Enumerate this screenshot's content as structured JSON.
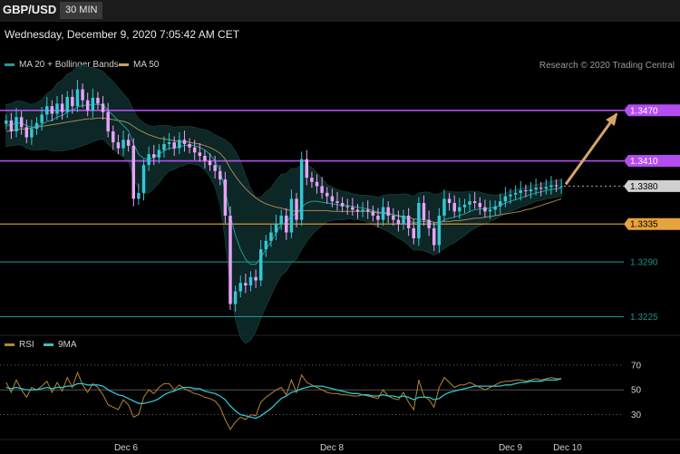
{
  "header": {
    "symbol": "GBP/USD",
    "timeframe": "30 MIN",
    "datetime": "Wednesday, December 9, 2020 7:05:42 AM CET",
    "credit": "Research © 2020 Trading Central"
  },
  "colors": {
    "background": "#000000",
    "resistance": "#b44cf2",
    "pivot": "#e8a33d",
    "support": "#1f8f86",
    "candle_up": "#35c6d4",
    "candle_down": "#e7a3f6",
    "ma20": "#1f9b98",
    "ma50": "#c9a25f",
    "band_fill": "#0e2a2a",
    "arrow": "#d6a46a",
    "rsi": "#b8862f",
    "rsi_ma": "#2fc3cf"
  },
  "chart_data": [
    {
      "type": "candlestick",
      "title": "GBP/USD",
      "timeframe": "30 MIN",
      "legend": [
        "MA 20 + Bollinger Bands",
        "MA 50"
      ],
      "x_ticks": [
        "Dec 6",
        "Dec 8",
        "Dec 9",
        "Dec 10"
      ],
      "ylim": [
        1.3205,
        1.3515
      ],
      "price_levels": [
        {
          "value": 1.347,
          "label": "1.3470",
          "kind": "resistance"
        },
        {
          "value": 1.341,
          "label": "1.3410",
          "kind": "resistance"
        },
        {
          "value": 1.338,
          "label": "1.3380",
          "kind": "last"
        },
        {
          "value": 1.3335,
          "label": "1.3335",
          "kind": "pivot"
        },
        {
          "value": 1.329,
          "label": "1.3290",
          "kind": "support"
        },
        {
          "value": 1.3225,
          "label": "1.3225",
          "kind": "support"
        }
      ],
      "close": [
        1.3458,
        1.3445,
        1.3462,
        1.345,
        1.3438,
        1.3448,
        1.3455,
        1.3465,
        1.3475,
        1.3466,
        1.3478,
        1.3468,
        1.3486,
        1.3475,
        1.3495,
        1.3482,
        1.347,
        1.3485,
        1.3478,
        1.3468,
        1.3445,
        1.3432,
        1.3425,
        1.3435,
        1.3428,
        1.3365,
        1.3372,
        1.3405,
        1.3418,
        1.3414,
        1.3423,
        1.343,
        1.3432,
        1.3425,
        1.3435,
        1.343,
        1.3426,
        1.342,
        1.3416,
        1.341,
        1.3405,
        1.3398,
        1.3388,
        1.3345,
        1.324,
        1.3255,
        1.3265,
        1.3262,
        1.3272,
        1.3268,
        1.3305,
        1.3315,
        1.3325,
        1.3335,
        1.3345,
        1.3325,
        1.3365,
        1.334,
        1.3412,
        1.339,
        1.3385,
        1.338,
        1.3372,
        1.3368,
        1.3362,
        1.336,
        1.3356,
        1.3355,
        1.3352,
        1.335,
        1.3352,
        1.335,
        1.3345,
        1.334,
        1.3355,
        1.3345,
        1.334,
        1.3335,
        1.3345,
        1.333,
        1.3318,
        1.336,
        1.334,
        1.333,
        1.331,
        1.3345,
        1.3365,
        1.336,
        1.335,
        1.3355,
        1.3358,
        1.3362,
        1.336,
        1.3355,
        1.335,
        1.3352,
        1.3356,
        1.3362,
        1.3368,
        1.337,
        1.3372,
        1.3375,
        1.3374,
        1.3376,
        1.3378,
        1.3377,
        1.3379,
        1.3381,
        1.338,
        1.338
      ],
      "ma20": [
        1.3452,
        1.3453,
        1.3455,
        1.3455,
        1.3452,
        1.345,
        1.3451,
        1.3453,
        1.3457,
        1.3458,
        1.3462,
        1.3464,
        1.3468,
        1.347,
        1.3474,
        1.3476,
        1.3476,
        1.3477,
        1.3477,
        1.3476,
        1.347,
        1.3464,
        1.3458,
        1.3452,
        1.3446,
        1.343,
        1.3418,
        1.3413,
        1.3412,
        1.3414,
        1.3418,
        1.3422,
        1.3425,
        1.3425,
        1.3427,
        1.3428,
        1.3429,
        1.3428,
        1.3426,
        1.3423,
        1.3418,
        1.341,
        1.3398,
        1.3375,
        1.3345,
        1.3322,
        1.3305,
        1.3293,
        1.3287,
        1.3287,
        1.3295,
        1.3305,
        1.3314,
        1.3325,
        1.3334,
        1.3337,
        1.3345,
        1.3347,
        1.3355,
        1.336,
        1.3362,
        1.3362,
        1.3361,
        1.336,
        1.3359,
        1.3358,
        1.3357,
        1.3357,
        1.3356,
        1.3355,
        1.3354,
        1.3353,
        1.3351,
        1.3349,
        1.3349,
        1.3348,
        1.3346,
        1.3344,
        1.3343,
        1.334,
        1.3336,
        1.3338,
        1.3338,
        1.3337,
        1.3334,
        1.3336,
        1.334,
        1.3342,
        1.3343,
        1.3345,
        1.3347,
        1.335,
        1.3352,
        1.3353,
        1.3353,
        1.3354,
        1.3355,
        1.3357,
        1.336,
        1.3362,
        1.3364,
        1.3366,
        1.3368,
        1.337,
        1.3372,
        1.3373,
        1.3375,
        1.3376,
        1.3377,
        1.3378
      ],
      "ma50": [
        1.3445,
        1.3446,
        1.3447,
        1.3448,
        1.3448,
        1.3449,
        1.345,
        1.3451,
        1.3452,
        1.3453,
        1.3454,
        1.3455,
        1.3456,
        1.3457,
        1.3458,
        1.3459,
        1.346,
        1.346,
        1.3461,
        1.3461,
        1.346,
        1.3459,
        1.3458,
        1.3457,
        1.3455,
        1.3451,
        1.3447,
        1.3444,
        1.3441,
        1.3439,
        1.3437,
        1.3436,
        1.3435,
        1.3434,
        1.3433,
        1.3433,
        1.3432,
        1.3431,
        1.343,
        1.3428,
        1.3426,
        1.3423,
        1.3419,
        1.3412,
        1.3401,
        1.3392,
        1.3384,
        1.3377,
        1.3371,
        1.3366,
        1.3362,
        1.3359,
        1.3357,
        1.3355,
        1.3354,
        1.3352,
        1.3351,
        1.335,
        1.3351,
        1.3351,
        1.3351,
        1.3351,
        1.3351,
        1.3351,
        1.335,
        1.335,
        1.335,
        1.335,
        1.335,
        1.335,
        1.335,
        1.335,
        1.3349,
        1.3348,
        1.3348,
        1.3347,
        1.3346,
        1.3345,
        1.3344,
        1.3343,
        1.3341,
        1.3341,
        1.334,
        1.3339,
        1.3337,
        1.3337,
        1.3338,
        1.3338,
        1.3339,
        1.3339,
        1.334,
        1.3341,
        1.3342,
        1.3342,
        1.3343,
        1.3344,
        1.3345,
        1.3346,
        1.3347,
        1.3348,
        1.3349,
        1.335,
        1.3352,
        1.3353,
        1.3355,
        1.3357,
        1.3359,
        1.3361,
        1.3363,
        1.3365
      ],
      "bb_width": [
        0.0025,
        0.0025,
        0.0026,
        0.0026,
        0.0027,
        0.0027,
        0.0028,
        0.003,
        0.0033,
        0.0036,
        0.004,
        0.0042,
        0.0045,
        0.0046,
        0.0048,
        0.0048,
        0.0046,
        0.0044,
        0.0042,
        0.004,
        0.004,
        0.004,
        0.0039,
        0.0038,
        0.0037,
        0.004,
        0.0042,
        0.0042,
        0.004,
        0.0037,
        0.0034,
        0.003,
        0.0027,
        0.0025,
        0.0024,
        0.0023,
        0.0022,
        0.0022,
        0.0022,
        0.0024,
        0.0027,
        0.0031,
        0.004,
        0.006,
        0.0085,
        0.01,
        0.0105,
        0.01,
        0.009,
        0.008,
        0.0072,
        0.0068,
        0.0064,
        0.0062,
        0.006,
        0.0058,
        0.0056,
        0.0054,
        0.005,
        0.0046,
        0.004,
        0.0034,
        0.0028,
        0.0022,
        0.002,
        0.0018,
        0.0017,
        0.0016,
        0.0015,
        0.0015,
        0.0015,
        0.0016,
        0.0017,
        0.0018,
        0.002,
        0.0022,
        0.0024,
        0.0026,
        0.0028,
        0.003,
        0.0032,
        0.0034,
        0.0035,
        0.0036,
        0.0036,
        0.0035,
        0.0034,
        0.0032,
        0.003,
        0.0028,
        0.0026,
        0.0024,
        0.0022,
        0.002,
        0.0018,
        0.0016,
        0.0014,
        0.0013,
        0.0012,
        0.0012,
        0.0012,
        0.0011,
        0.0011,
        0.0011,
        0.001,
        0.001,
        0.001,
        0.001,
        0.001,
        0.001
      ],
      "projection": [
        1.338,
        1.347
      ]
    },
    {
      "type": "line",
      "legend": [
        "RSI",
        "9MA"
      ],
      "ylim": [
        15,
        78
      ],
      "y_ticks": [
        70,
        50,
        30
      ],
      "series": [
        {
          "name": "RSI",
          "values": [
            56,
            48,
            58,
            50,
            44,
            52,
            50,
            53,
            57,
            48,
            56,
            49,
            60,
            52,
            64,
            54,
            48,
            55,
            52,
            46,
            38,
            36,
            34,
            42,
            38,
            28,
            30,
            44,
            50,
            47,
            52,
            55,
            55,
            50,
            54,
            51,
            49,
            47,
            46,
            44,
            43,
            41,
            36,
            26,
            18,
            24,
            28,
            26,
            30,
            29,
            40,
            44,
            47,
            50,
            52,
            46,
            58,
            48,
            62,
            56,
            54,
            52,
            50,
            48,
            47,
            47,
            46,
            46,
            45,
            45,
            46,
            45,
            44,
            43,
            50,
            45,
            43,
            42,
            48,
            40,
            34,
            58,
            45,
            42,
            36,
            52,
            60,
            56,
            52,
            54,
            54,
            56,
            54,
            52,
            50,
            52,
            54,
            56,
            57,
            57,
            58,
            58,
            57,
            58,
            59,
            58,
            59,
            60,
            59,
            59
          ]
        },
        {
          "name": "9MA",
          "values": [
            52,
            51,
            52,
            51,
            50,
            50,
            50,
            51,
            52,
            51,
            52,
            52,
            53,
            53,
            55,
            55,
            54,
            54,
            54,
            53,
            50,
            48,
            46,
            45,
            43,
            41,
            39,
            39,
            40,
            41,
            43,
            46,
            48,
            49,
            51,
            52,
            52,
            51,
            51,
            49,
            48,
            47,
            45,
            42,
            37,
            33,
            30,
            29,
            28,
            27,
            29,
            32,
            35,
            39,
            43,
            45,
            48,
            49,
            51,
            52,
            53,
            53,
            53,
            52,
            51,
            50,
            49,
            48,
            47,
            47,
            46,
            46,
            45,
            45,
            46,
            45,
            45,
            44,
            45,
            44,
            42,
            44,
            44,
            44,
            42,
            43,
            46,
            48,
            49,
            50,
            51,
            52,
            53,
            53,
            53,
            53,
            53,
            53,
            54,
            54,
            55,
            56,
            56,
            57,
            57,
            57,
            58,
            58,
            58,
            59
          ]
        }
      ]
    }
  ]
}
